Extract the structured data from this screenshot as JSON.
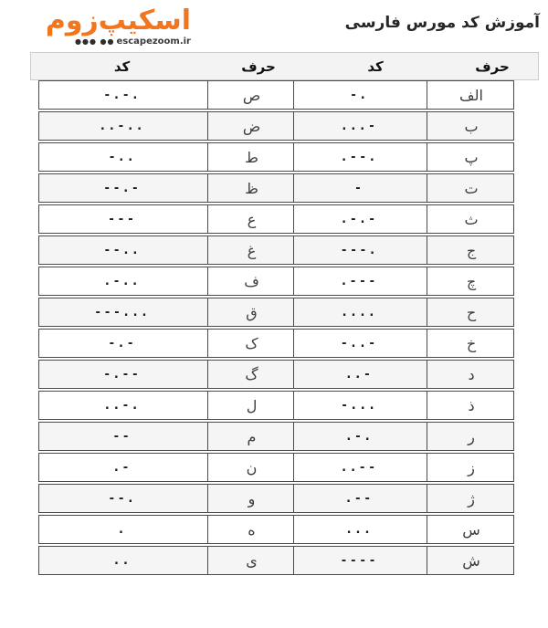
{
  "accent_color": "#f2751f",
  "border_color": "#4a4a4a",
  "logo": {
    "brand_text": "اسکیپ‌زوم",
    "dots": "●●● ●●",
    "domain": "escapezoom.ir"
  },
  "title": "آموزش کد مورس فارسی",
  "table": {
    "headers": [
      "کد",
      "حرف",
      "کد",
      "حرف"
    ],
    "rows": [
      {
        "code_left": "-.-.",
        "letter_left": "ص",
        "code_right": "-.",
        "letter_right": "الف"
      },
      {
        "code_left": "..-..",
        "letter_left": "ض",
        "code_right": "...-",
        "letter_right": "ب"
      },
      {
        "code_left": "-..",
        "letter_left": "ط",
        "code_right": ".--.",
        "letter_right": "پ"
      },
      {
        "code_left": "--.-",
        "letter_left": "ظ",
        "code_right": "-",
        "letter_right": "ت"
      },
      {
        "code_left": "---",
        "letter_left": "ع",
        "code_right": ".-.-",
        "letter_right": "ث"
      },
      {
        "code_left": "--..",
        "letter_left": "غ",
        "code_right": "---.",
        "letter_right": "ج"
      },
      {
        "code_left": ".-..",
        "letter_left": "ف",
        "code_right": ".---",
        "letter_right": "چ"
      },
      {
        "code_left": "---...",
        "letter_left": "ق",
        "code_right": "....",
        "letter_right": "ح"
      },
      {
        "code_left": "-.-",
        "letter_left": "ک",
        "code_right": "-..-",
        "letter_right": "خ"
      },
      {
        "code_left": "-.--",
        "letter_left": "گ",
        "code_right": "..-",
        "letter_right": "د"
      },
      {
        "code_left": "..-.",
        "letter_left": "ل",
        "code_right": "-...",
        "letter_right": "ذ"
      },
      {
        "code_left": "--",
        "letter_left": "م",
        "code_right": ".-.",
        "letter_right": "ر"
      },
      {
        "code_left": ".-",
        "letter_left": "ن",
        "code_right": "..--",
        "letter_right": "ز"
      },
      {
        "code_left": "--.",
        "letter_left": "و",
        "code_right": ".--",
        "letter_right": "ژ"
      },
      {
        "code_left": ".",
        "letter_left": "ه",
        "code_right": "...",
        "letter_right": "س"
      },
      {
        "code_left": "..",
        "letter_left": "ی",
        "code_right": "----",
        "letter_right": "ش"
      }
    ]
  }
}
